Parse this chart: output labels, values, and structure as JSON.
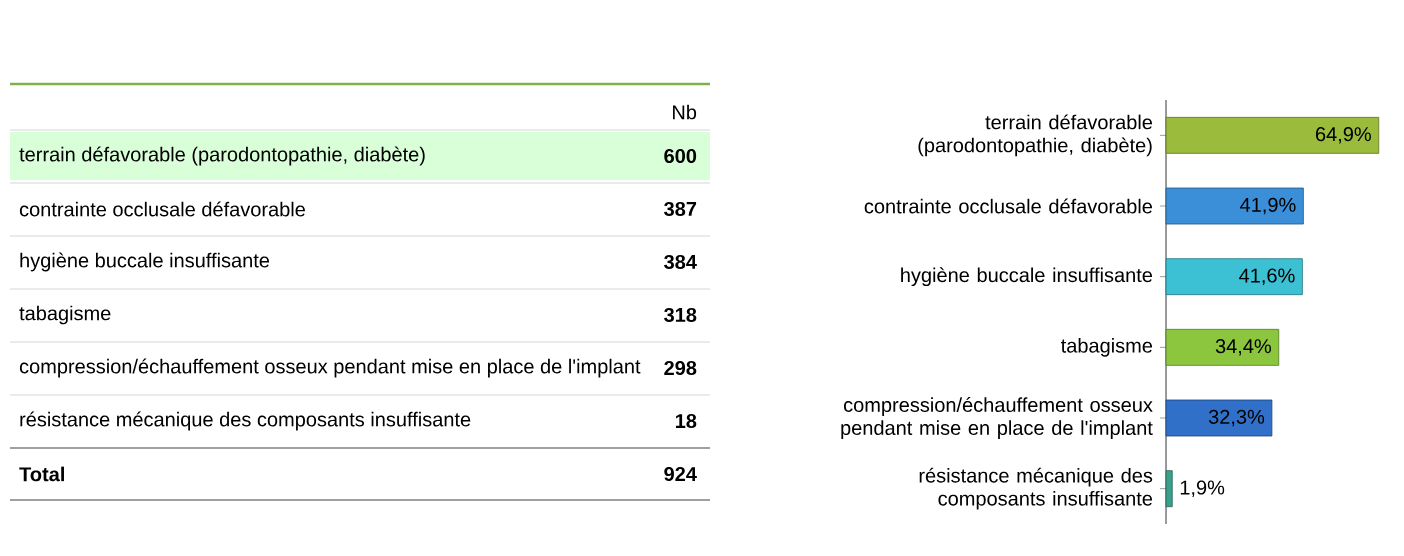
{
  "chart_data": [
    {
      "type": "other",
      "title": "Nb",
      "categories": [
        "terrain défavorable (parodontopathie, diabète)",
        "contrainte occlusale défavorable",
        "hygiène buccale insuffisante",
        "tabagisme",
        "compression/échauffement osseux pendant mise en place de l'implant",
        "résistance mécanique des composants insuffisante",
        "Total"
      ],
      "values": [
        600,
        387,
        384,
        318,
        298,
        18,
        924
      ],
      "data_labels": true
    },
    {
      "type": "bar",
      "orientation": "horizontal",
      "categories": [
        "terrain défavorable (parodontopathie, diabète)",
        "contrainte occlusale défavorable",
        "hygiène buccale insuffisante",
        "tabagisme",
        "compression/échauffement osseux pendant mise en place de l'implant",
        "résistance mécanique des composants insuffisante"
      ],
      "values": [
        64.9,
        41.9,
        41.6,
        34.4,
        32.3,
        1.9
      ],
      "colors": [
        "#9bbb3c",
        "#3a8fd8",
        "#3cc0d4",
        "#8cc63f",
        "#3070c8",
        "#3aa08c"
      ],
      "value_labels": [
        "64,9%",
        "41,9%",
        "41,6%",
        "34,4%",
        "32,3%",
        "1,9%"
      ]
    }
  ]
}
